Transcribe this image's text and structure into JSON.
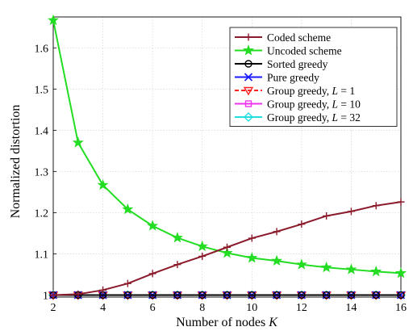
{
  "chart_data": {
    "type": "line",
    "title": "",
    "xlabel": "Number of nodes K",
    "ylabel": "Normalized distortion",
    "xlim": [
      2,
      16
    ],
    "ylim": [
      0.995,
      1.675
    ],
    "grid": true,
    "legend_position": "top-right",
    "x_ticks": [
      "2",
      "4",
      "6",
      "8",
      "10",
      "12",
      "14",
      "16"
    ],
    "x_tick_values": [
      2,
      4,
      6,
      8,
      10,
      12,
      14,
      16
    ],
    "y_ticks": [
      "1",
      "1.1",
      "1.2",
      "1.3",
      "1.4",
      "1.5",
      "1.6"
    ],
    "y_tick_values": [
      1.0,
      1.1,
      1.2,
      1.3,
      1.4,
      1.5,
      1.6
    ],
    "x": [
      2,
      3,
      4,
      5,
      6,
      7,
      8,
      9,
      10,
      11,
      12,
      13,
      14,
      15,
      16
    ],
    "series": [
      {
        "name": "Coded scheme",
        "color": "#8b1a2b",
        "marker": "plus",
        "dash": "solid",
        "values": [
          1.0,
          1.002,
          1.012,
          1.028,
          1.052,
          1.074,
          1.094,
          1.116,
          1.138,
          1.154,
          1.172,
          1.192,
          1.203,
          1.217,
          1.226
        ]
      },
      {
        "name": "Uncoded scheme",
        "color": "#22dd22",
        "marker": "star",
        "dash": "solid",
        "values": [
          1.667,
          1.37,
          1.267,
          1.208,
          1.168,
          1.139,
          1.118,
          1.102,
          1.09,
          1.083,
          1.074,
          1.067,
          1.062,
          1.057,
          1.053
        ]
      },
      {
        "name": "Sorted greedy",
        "color": "#000000",
        "marker": "circle",
        "dash": "solid",
        "values": [
          1.0,
          1.0,
          1.0,
          1.0,
          1.0,
          1.0,
          1.0,
          1.0,
          1.0,
          1.0,
          1.0,
          1.0,
          1.0,
          1.0,
          1.0
        ]
      },
      {
        "name": "Pure greedy",
        "color": "#1a1aff",
        "marker": "x",
        "dash": "solid",
        "values": [
          1.0,
          1.0,
          1.0,
          1.0,
          1.0,
          1.0,
          1.0,
          1.0,
          1.0,
          1.0,
          1.0,
          1.0,
          1.0,
          1.0,
          1.0
        ]
      },
      {
        "name": "Group greedy, L = 1",
        "color": "#ff2020",
        "marker": "triangle-down",
        "dash": "dashed",
        "values": [
          1.0,
          1.0,
          1.0,
          1.0,
          1.0,
          1.0,
          1.0,
          1.0,
          1.0,
          1.0,
          1.0,
          1.0,
          1.0,
          1.0,
          1.0
        ]
      },
      {
        "name": "Group greedy, L = 10",
        "color": "#ee33ee",
        "marker": "square",
        "dash": "solid",
        "values": [
          1.0,
          1.0,
          1.0,
          1.0,
          1.0,
          1.0,
          1.0,
          1.0,
          1.0,
          1.0,
          1.0,
          1.0,
          1.0,
          1.0,
          1.0
        ]
      },
      {
        "name": "Group greedy, L = 32",
        "color": "#22dddd",
        "marker": "diamond",
        "dash": "solid",
        "values": [
          1.0,
          1.0,
          1.0,
          1.0,
          1.0,
          1.0,
          1.0,
          1.0,
          1.0,
          1.0,
          1.0,
          1.0,
          1.0,
          1.0,
          1.0
        ]
      }
    ]
  }
}
